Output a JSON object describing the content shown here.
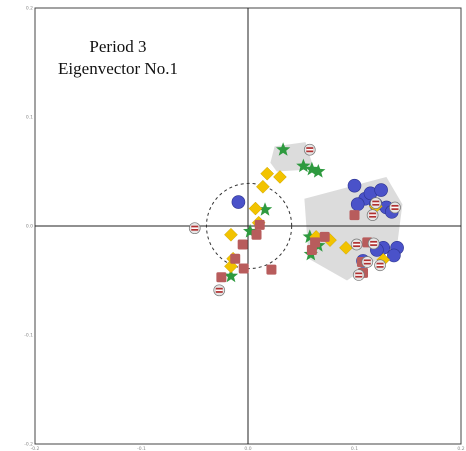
{
  "chart_data": {
    "type": "scatter",
    "title_lines": [
      "Period 3",
      "Eigenvector No.1"
    ],
    "xlim": [
      -0.2,
      0.2
    ],
    "ylim": [
      -0.2,
      0.2
    ],
    "x_ticks": [
      -0.2,
      -0.1,
      0.0,
      0.1,
      0.2
    ],
    "y_ticks": [
      0.2,
      0.1,
      0.0,
      -0.1,
      -0.2
    ],
    "x_tick_labels": [
      "-0.2",
      "-0.1",
      "0.0",
      "0.1",
      "0.2"
    ],
    "y_tick_labels": [
      "0.2",
      "0.1",
      "0.0",
      "-0.1",
      "-0.2"
    ],
    "grid": false,
    "zero_axes": true,
    "colors": {
      "blue": "#4a52c9",
      "green": "#2e9a3f",
      "yellow": "#f2c300",
      "red_square": "#b85c5c",
      "cluster_fill": "#dcdcdc",
      "circle_outline": "#333333"
    },
    "clusters": [
      {
        "name": "upper-cluster-region",
        "polygon": [
          [
            0.025,
            0.073
          ],
          [
            0.054,
            0.077
          ],
          [
            0.062,
            0.052
          ],
          [
            0.027,
            0.05
          ],
          [
            0.021,
            0.058
          ]
        ]
      },
      {
        "name": "right-cluster-region",
        "polygon": [
          [
            0.053,
            0.025
          ],
          [
            0.13,
            0.045
          ],
          [
            0.145,
            0.02
          ],
          [
            0.14,
            -0.018
          ],
          [
            0.093,
            -0.05
          ],
          [
            0.057,
            -0.03
          ]
        ]
      }
    ],
    "dashed_circle": {
      "cx": 0.001,
      "cy": 0.0,
      "r": 0.04
    },
    "series": [
      {
        "name": "",
        "marker": "circle",
        "color": "#4a52c9",
        "x": [
          -0.009,
          0.1,
          0.11,
          0.115,
          0.12,
          0.125,
          0.13,
          0.135,
          0.14,
          0.103,
          0.127,
          0.137,
          0.121,
          0.108
        ],
        "y": [
          0.022,
          0.037,
          0.025,
          0.03,
          0.02,
          0.033,
          0.017,
          0.013,
          -0.02,
          0.02,
          -0.02,
          -0.027,
          -0.022,
          -0.032
        ]
      },
      {
        "name": "",
        "marker": "star",
        "color": "#2e9a3f",
        "x": [
          0.033,
          0.052,
          0.06,
          0.066,
          0.016,
          0.002,
          0.058,
          0.066,
          0.059,
          -0.016
        ],
        "y": [
          0.07,
          0.055,
          0.052,
          0.05,
          0.015,
          -0.005,
          -0.01,
          -0.018,
          -0.026,
          -0.046
        ]
      },
      {
        "name": "",
        "marker": "diamond",
        "color": "#f2c300",
        "x": [
          0.018,
          0.014,
          0.03,
          -0.016,
          0.007,
          -0.014,
          0.01,
          -0.016,
          0.064,
          0.12,
          0.127,
          0.077,
          0.092
        ],
        "y": [
          0.048,
          0.036,
          0.045,
          -0.008,
          0.016,
          -0.03,
          0.003,
          -0.037,
          -0.01,
          0.018,
          -0.031,
          -0.013,
          -0.02
        ]
      },
      {
        "name": "",
        "marker": "square",
        "color": "#b85c5c",
        "x": [
          0.011,
          -0.005,
          0.008,
          -0.004,
          -0.012,
          -0.025,
          0.022,
          0.063,
          0.072,
          0.1,
          0.112,
          0.107,
          0.108,
          0.06
        ],
        "y": [
          0.001,
          -0.017,
          -0.008,
          -0.039,
          -0.03,
          -0.047,
          -0.04,
          -0.015,
          -0.01,
          0.01,
          -0.015,
          -0.033,
          -0.043,
          -0.022
        ]
      },
      {
        "name": "",
        "marker": "flag",
        "color": "#cccccc",
        "x": [
          0.058,
          -0.05,
          -0.027,
          0.117,
          0.138,
          0.102,
          0.118,
          0.124,
          0.12,
          0.112,
          0.104
        ],
        "y": [
          0.07,
          -0.002,
          -0.059,
          0.01,
          0.017,
          -0.017,
          -0.016,
          -0.036,
          0.021,
          -0.033,
          -0.045
        ]
      }
    ]
  }
}
